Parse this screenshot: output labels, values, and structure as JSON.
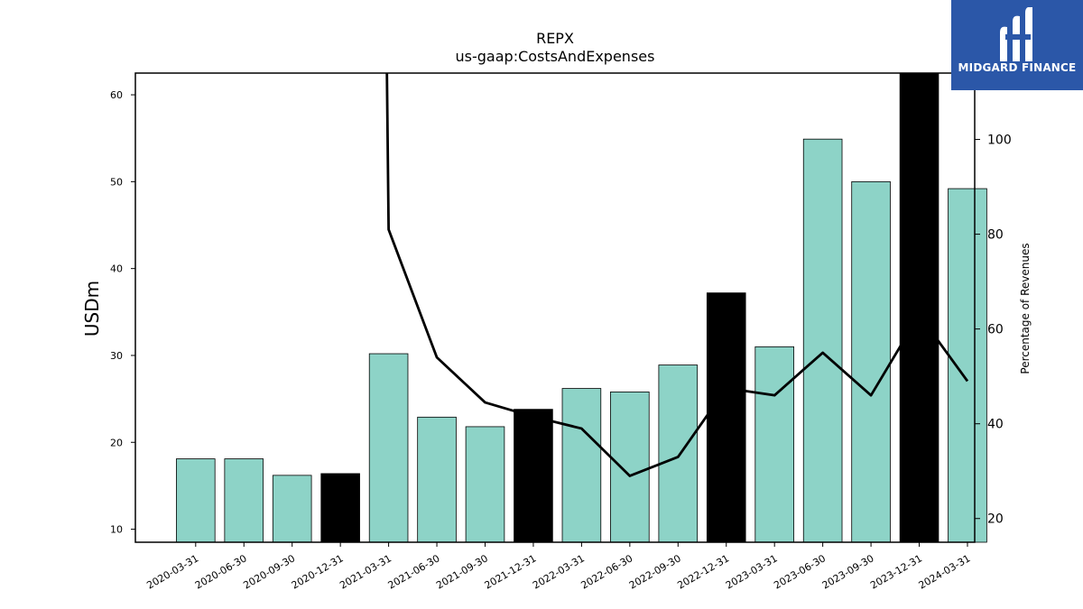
{
  "chart_data": {
    "type": "bar",
    "title": "REPX",
    "subtitle": "us-gaap:CostsAndExpenses",
    "ylabel": "USDm",
    "y2label": "Percentage of Revenues",
    "categories": [
      "2020-03-31",
      "2020-06-30",
      "2020-09-30",
      "2020-12-31",
      "2021-03-31",
      "2021-06-30",
      "2021-09-30",
      "2021-12-31",
      "2022-03-31",
      "2022-06-30",
      "2022-09-30",
      "2022-12-31",
      "2023-03-31",
      "2023-06-30",
      "2023-09-30",
      "2023-12-31",
      "2024-03-31"
    ],
    "series": [
      {
        "axis": "left",
        "kind": "bar",
        "values": [
          18.1,
          18.1,
          16.2,
          16.4,
          30.2,
          22.9,
          21.8,
          23.8,
          26.2,
          25.8,
          28.9,
          37.2,
          31.0,
          54.9,
          50.0,
          62.5,
          49.2
        ],
        "highlight": [
          false,
          false,
          false,
          true,
          false,
          false,
          false,
          true,
          false,
          false,
          false,
          true,
          false,
          false,
          false,
          true,
          false
        ]
      },
      {
        "axis": "right",
        "kind": "line",
        "values": [
          null,
          null,
          null,
          null,
          81,
          54,
          44.5,
          41.5,
          39,
          29,
          33,
          47.5,
          46,
          55,
          46,
          63,
          49
        ]
      }
    ],
    "ylim": [
      8.5,
      62.5
    ],
    "yticks": [
      10,
      20,
      30,
      40,
      50,
      60
    ],
    "y2lim": [
      15,
      114
    ],
    "y2ticks": [
      20,
      40,
      60,
      80,
      100
    ],
    "colors": {
      "bar": "#8dd3c7",
      "highlight_bar": "#000000",
      "line": "#000000"
    }
  },
  "logo": {
    "text": "MIDGARD FINANCE",
    "background": "#2b57a8"
  }
}
